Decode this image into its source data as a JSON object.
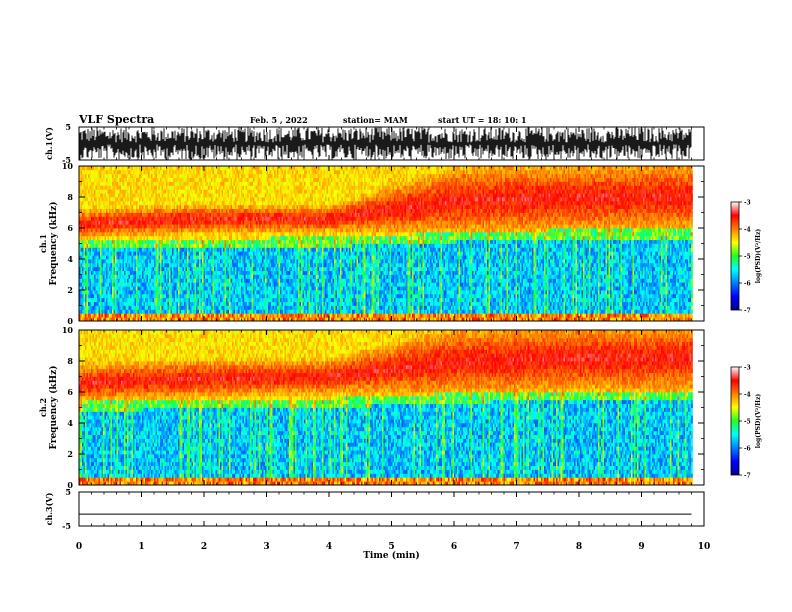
{
  "header": {
    "title": "VLF Spectra",
    "date": "Feb. 5 , 2022",
    "station": "station= MAM",
    "start": "start UT = 18: 10: 1"
  },
  "chart_data": [
    {
      "type": "line",
      "name": "ch1-waveform",
      "ylabel": "ch.1(V)",
      "ylim": [
        -5,
        5
      ],
      "yticks": [
        "5",
        "-5"
      ],
      "xlim": [
        0,
        10
      ],
      "description_values": {
        "envelope_low": -5,
        "envelope_high": 5
      }
    },
    {
      "type": "heatmap",
      "name": "ch1-spectrogram",
      "ylabel_top": "ch.1",
      "ylabel": "Frequency (kHz)",
      "ylim": [
        0,
        10
      ],
      "yticks": [
        "0",
        "2",
        "4",
        "6",
        "8",
        "10"
      ],
      "xlim": [
        0,
        10
      ],
      "data_end_min": 9.8,
      "colorbar": {
        "label": "log(PSD)(V²/Hz)",
        "range": [
          -7,
          -3
        ],
        "ticks": [
          "-3",
          "-4",
          "-5",
          "-6",
          "-7"
        ]
      },
      "bands": [
        {
          "x": 0,
          "hiss_center_khz": 6.3,
          "hiss_width_khz": 1.2,
          "lower_edge_khz": 5.1
        },
        {
          "x": 2,
          "hiss_center_khz": 6.6,
          "hiss_width_khz": 1.2,
          "lower_edge_khz": 5.2
        },
        {
          "x": 4,
          "hiss_center_khz": 6.6,
          "hiss_width_khz": 1.1,
          "lower_edge_khz": 5.3
        },
        {
          "x": 6,
          "hiss_center_khz": 7.8,
          "hiss_width_khz": 3.0,
          "lower_edge_khz": 5.6
        },
        {
          "x": 8,
          "hiss_center_khz": 8.0,
          "hiss_width_khz": 3.0,
          "lower_edge_khz": 5.8
        },
        {
          "x": 9.8,
          "hiss_center_khz": 8.0,
          "hiss_width_khz": 3.0,
          "lower_edge_khz": 5.8
        }
      ]
    },
    {
      "type": "heatmap",
      "name": "ch2-spectrogram",
      "ylabel_top": "ch.2",
      "ylabel": "Frequency (kHz)",
      "ylim": [
        0,
        10
      ],
      "yticks": [
        "0",
        "2",
        "4",
        "6",
        "8",
        "10"
      ],
      "xlim": [
        0,
        10
      ],
      "data_end_min": 9.8,
      "colorbar": {
        "label": "log(PSD)(V²/Hz)",
        "range": [
          -7,
          -3
        ],
        "ticks": [
          "-3",
          "-4",
          "-5",
          "-6",
          "-7"
        ]
      },
      "bands": [
        {
          "x": 0,
          "hiss_center_khz": 6.6,
          "hiss_width_khz": 1.6,
          "lower_edge_khz": 5.3
        },
        {
          "x": 2,
          "hiss_center_khz": 6.9,
          "hiss_width_khz": 1.6,
          "lower_edge_khz": 5.4
        },
        {
          "x": 4,
          "hiss_center_khz": 7.0,
          "hiss_width_khz": 1.5,
          "lower_edge_khz": 5.5
        },
        {
          "x": 6,
          "hiss_center_khz": 8.0,
          "hiss_width_khz": 3.0,
          "lower_edge_khz": 5.8
        },
        {
          "x": 8,
          "hiss_center_khz": 8.2,
          "hiss_width_khz": 3.0,
          "lower_edge_khz": 6.0
        },
        {
          "x": 9.8,
          "hiss_center_khz": 8.2,
          "hiss_width_khz": 3.0,
          "lower_edge_khz": 6.0
        }
      ]
    },
    {
      "type": "line",
      "name": "ch3-waveform",
      "ylabel": "ch.3(V)",
      "ylim": [
        -5,
        5
      ],
      "yticks": [
        "5",
        "-5"
      ],
      "xlim": [
        0,
        10
      ],
      "values": [
        {
          "x": 0,
          "y": -1.5
        },
        {
          "x": 9.8,
          "y": -1.5
        }
      ]
    }
  ],
  "xaxis": {
    "label": "Time (min)",
    "ticks": [
      "0",
      "1",
      "2",
      "3",
      "4",
      "5",
      "6",
      "7",
      "8",
      "9",
      "10"
    ]
  }
}
